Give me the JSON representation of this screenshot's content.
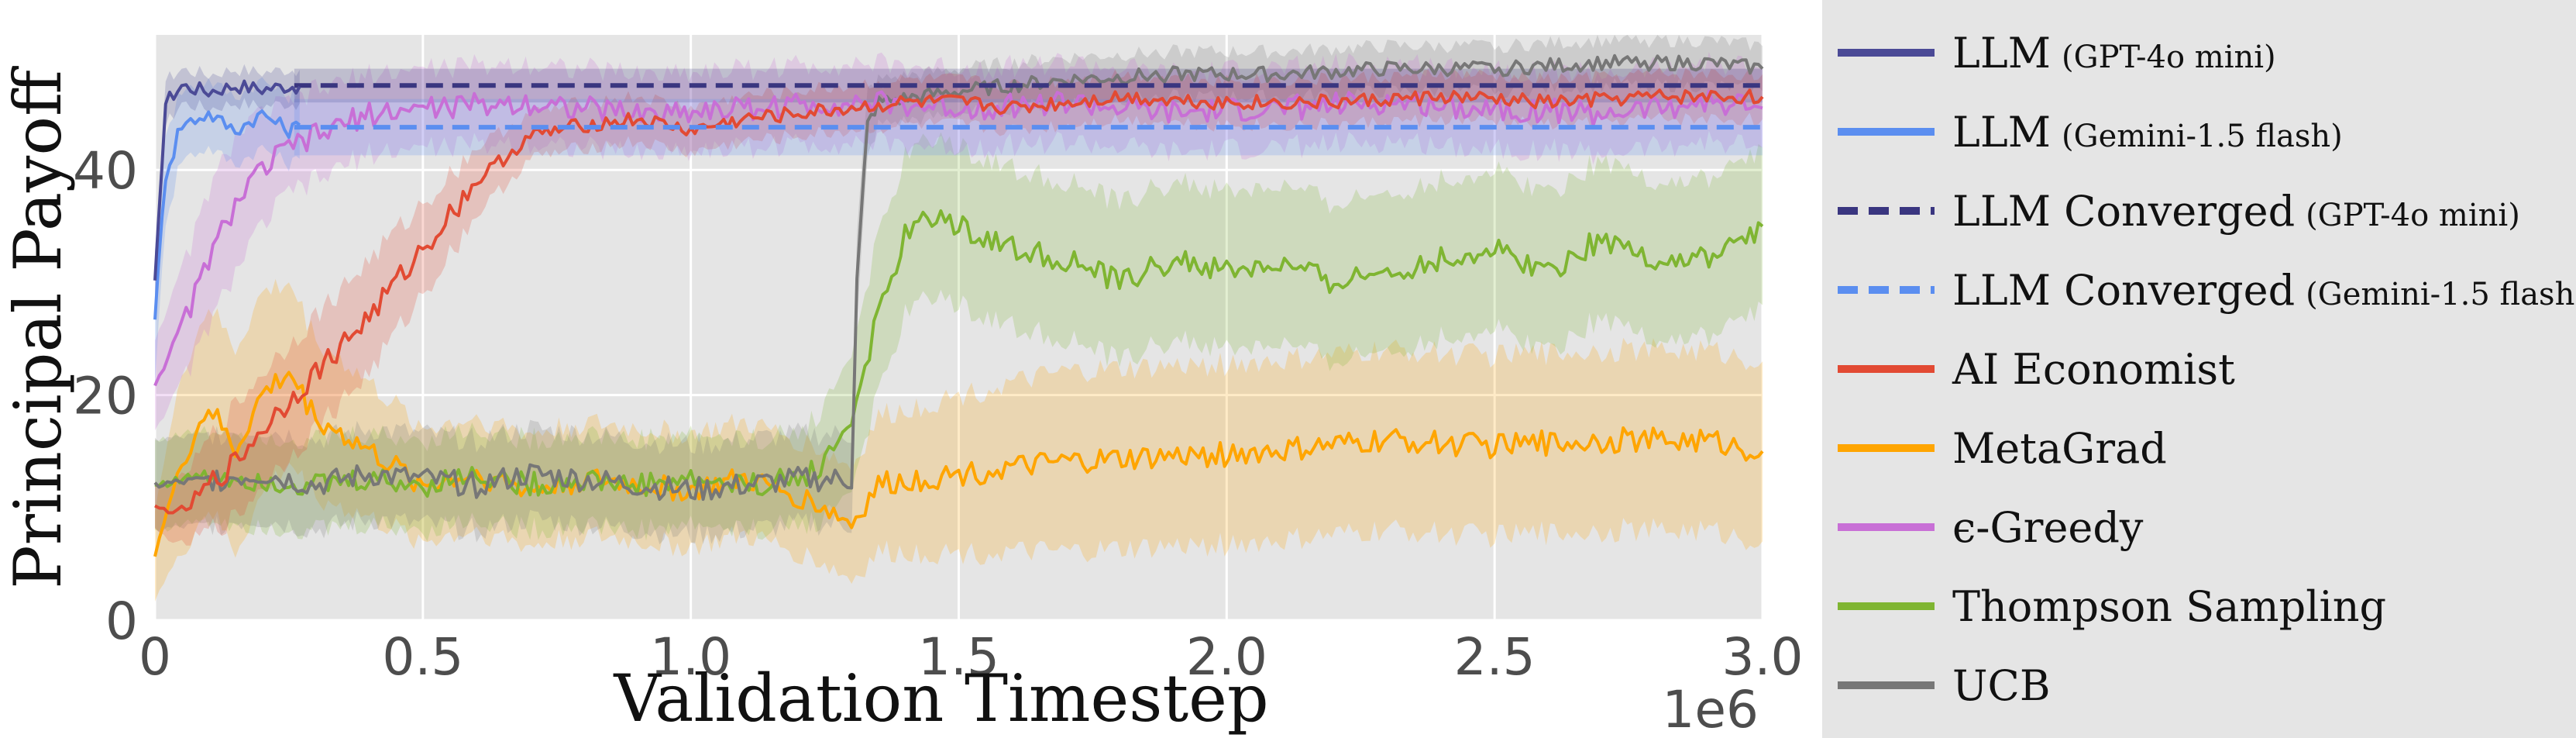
{
  "chart_data": {
    "type": "line",
    "title": "",
    "xlabel": "Validation Timestep",
    "ylabel": "Principal Payoff",
    "x_offset_label": "1e6",
    "xlim": [
      0,
      3.0
    ],
    "ylim": [
      0,
      52
    ],
    "x_ticks": [
      0,
      0.5,
      1.0,
      1.5,
      2.0,
      2.5,
      3.0
    ],
    "x_tick_labels": [
      "0",
      "0.5",
      "1.0",
      "1.5",
      "2.0",
      "2.5",
      "3.0"
    ],
    "y_ticks": [
      0,
      20,
      40
    ],
    "y_tick_labels": [
      "0",
      "20",
      "40"
    ],
    "grid": true,
    "legend_position": "outside-right",
    "series": [
      {
        "name": "LLM",
        "sub": "(GPT-4o mini)",
        "color": "#4b4a96",
        "dash": "solid",
        "x": [
          0,
          0.02,
          0.05,
          0.1,
          0.15,
          0.2,
          0.25,
          0.27
        ],
        "y": [
          30,
          46,
          47.5,
          47,
          47.5,
          47.2,
          47.5,
          47.4
        ],
        "band": [
          2.5,
          2,
          1.5,
          1.5,
          1.5,
          1.5,
          1.5,
          1.5
        ]
      },
      {
        "name": "LLM",
        "sub": "(Gemini-1.5 flash)",
        "color": "#5b8ef0",
        "dash": "solid",
        "x": [
          0,
          0.02,
          0.05,
          0.1,
          0.15,
          0.2,
          0.25,
          0.27
        ],
        "y": [
          27,
          40,
          44,
          45,
          43.5,
          45,
          43.5,
          44
        ],
        "band": [
          6,
          4,
          3,
          3,
          3,
          3,
          3,
          3
        ]
      },
      {
        "name": "LLM Converged",
        "sub": "(GPT-4o mini)",
        "color": "#3a3680",
        "dash": "dashed",
        "x": [
          0.26,
          3.0
        ],
        "y": [
          47.5,
          47.5
        ],
        "band": [
          1.5,
          1.5
        ]
      },
      {
        "name": "LLM Converged",
        "sub": "(Gemini-1.5 flash)",
        "color": "#5b8ef0",
        "dash": "dashed",
        "x": [
          0.26,
          3.0
        ],
        "y": [
          43.8,
          43.8
        ],
        "band": [
          2.5,
          2.5
        ]
      },
      {
        "name": "AI Economist",
        "sub": "",
        "color": "#e24a33",
        "dash": "solid",
        "x": [
          0,
          0.05,
          0.1,
          0.15,
          0.2,
          0.3,
          0.4,
          0.5,
          0.6,
          0.7,
          0.8,
          0.9,
          1.0,
          1.1,
          1.2,
          1.3,
          1.4,
          1.5,
          1.6,
          1.8,
          2.0,
          2.2,
          2.4,
          2.6,
          2.8,
          3.0
        ],
        "y": [
          10,
          9.5,
          12,
          14,
          17,
          22,
          27,
          33,
          39,
          43,
          44,
          44.5,
          43.5,
          44.5,
          45,
          45.5,
          46,
          46,
          45.5,
          46.5,
          46,
          46,
          46.5,
          46,
          46.5,
          46.5
        ],
        "band": [
          2,
          3,
          4,
          5,
          5,
          5,
          5,
          4,
          3,
          2,
          2,
          2,
          2,
          2,
          2,
          2,
          2,
          2,
          2,
          2,
          2,
          2,
          2,
          2,
          2,
          2
        ]
      },
      {
        "name": "MetaGrad",
        "sub": "",
        "color": "#ffa500",
        "dash": "solid",
        "x": [
          0,
          0.05,
          0.1,
          0.15,
          0.2,
          0.25,
          0.3,
          0.4,
          0.5,
          0.6,
          0.7,
          0.8,
          0.9,
          1.0,
          1.1,
          1.2,
          1.25,
          1.3,
          1.35,
          1.5,
          1.7,
          1.9,
          2.1,
          2.3,
          2.5,
          2.7,
          2.9,
          3.0
        ],
        "y": [
          6,
          14,
          19,
          15,
          20,
          22,
          18,
          15,
          12,
          13,
          11.5,
          12.5,
          12,
          11.5,
          12.5,
          11,
          10,
          8.5,
          12,
          13,
          14,
          14.5,
          15,
          16,
          15.5,
          16,
          16,
          15
        ],
        "band": [
          4,
          8,
          9,
          9,
          9,
          8,
          7,
          6,
          5,
          5,
          5,
          5,
          5,
          5,
          5,
          5,
          5,
          5,
          6,
          7,
          8,
          8,
          8,
          8,
          8,
          8,
          8,
          8
        ]
      },
      {
        "name": "ϵ-Greedy",
        "sub": "",
        "color": "#c86fd6",
        "dash": "solid",
        "x": [
          0,
          0.05,
          0.1,
          0.15,
          0.2,
          0.25,
          0.3,
          0.4,
          0.5,
          0.7,
          0.9,
          1.1,
          1.3,
          1.5,
          1.7,
          1.9,
          2.1,
          2.3,
          2.5,
          2.7,
          2.9,
          3.0
        ],
        "y": [
          21,
          26,
          32,
          37,
          40,
          42,
          43,
          45,
          45.5,
          46,
          45,
          45.5,
          46,
          45.5,
          46,
          45,
          45.5,
          46,
          45.5,
          45,
          46,
          45.5
        ],
        "band": [
          4,
          5,
          6,
          6,
          5,
          4,
          4,
          3.5,
          3.5,
          3.5,
          3.5,
          3.5,
          3.5,
          3.5,
          3.5,
          3.5,
          3.5,
          3.5,
          3.5,
          3.5,
          3.5,
          3.5
        ]
      },
      {
        "name": "Thompson Sampling",
        "sub": "",
        "color": "#7fb532",
        "dash": "solid",
        "x": [
          0,
          0.1,
          0.2,
          0.3,
          0.4,
          0.5,
          0.6,
          0.7,
          0.8,
          0.9,
          1.0,
          1.1,
          1.2,
          1.25,
          1.3,
          1.35,
          1.4,
          1.45,
          1.5,
          1.6,
          1.7,
          1.8,
          1.9,
          2.0,
          2.1,
          2.2,
          2.3,
          2.4,
          2.5,
          2.6,
          2.7,
          2.8,
          2.9,
          3.0
        ],
        "y": [
          12,
          13,
          12.5,
          12,
          12.5,
          12,
          13,
          12,
          12.5,
          12,
          12.5,
          12,
          12.5,
          14,
          18,
          27,
          34,
          36,
          35,
          33,
          32,
          30,
          32,
          31,
          31.5,
          30,
          31,
          32,
          33,
          31,
          34,
          32,
          32,
          35
        ],
        "band": [
          4,
          4,
          4,
          4,
          4,
          4,
          4,
          4,
          4,
          4,
          4,
          4,
          4,
          5,
          6,
          7,
          7,
          7,
          7,
          7,
          7,
          7,
          7,
          7,
          7,
          7,
          7,
          7,
          7,
          7,
          7,
          7,
          7,
          7
        ]
      },
      {
        "name": "UCB",
        "sub": "",
        "color": "#777777",
        "dash": "solid",
        "x": [
          0,
          0.1,
          0.2,
          0.3,
          0.4,
          0.5,
          0.6,
          0.7,
          0.8,
          0.9,
          1.0,
          1.1,
          1.2,
          1.3,
          1.31,
          1.33,
          1.35,
          1.5,
          1.7,
          1.9,
          2.1,
          2.3,
          2.5,
          2.7,
          2.9,
          3.0
        ],
        "y": [
          12,
          12.5,
          13,
          12,
          13,
          12.5,
          12,
          13,
          12.5,
          12,
          11.5,
          12,
          12.5,
          12.5,
          30,
          44,
          46,
          47,
          48,
          48.5,
          48.5,
          49,
          49,
          49.5,
          49.5,
          49
        ],
        "band": [
          4,
          4,
          4,
          4,
          4,
          4,
          4,
          4,
          4,
          4,
          4,
          4,
          4,
          4,
          4,
          3,
          2,
          2,
          2,
          2,
          2,
          2,
          2,
          2,
          2,
          2
        ]
      }
    ]
  }
}
